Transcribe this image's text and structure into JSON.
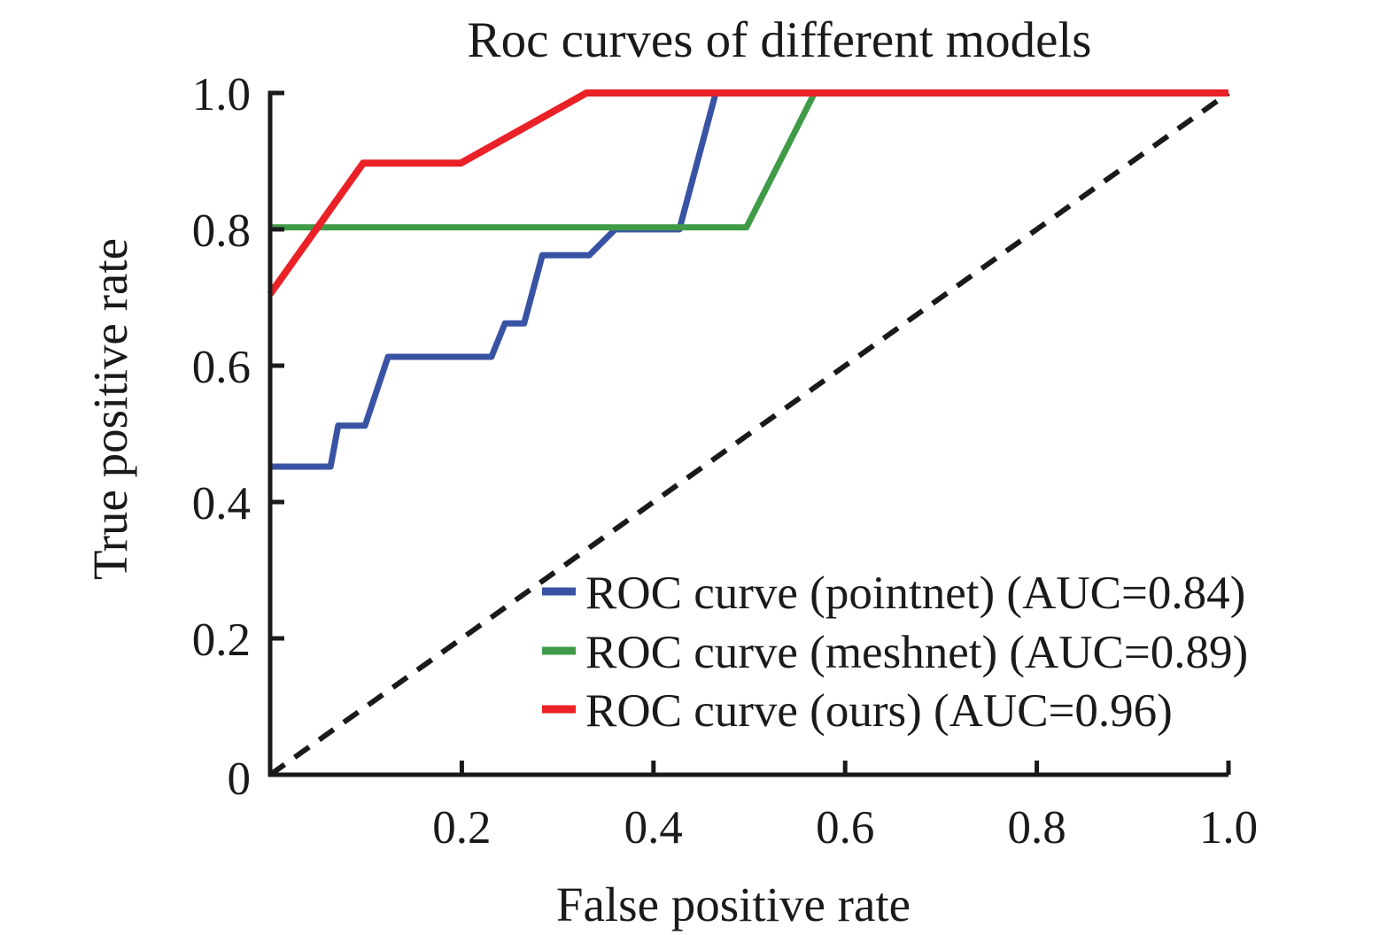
{
  "title": "Roc curves of different models",
  "axes": {
    "xlabel": "False positive rate",
    "ylabel": "True positive rate",
    "xlim": [
      0,
      1
    ],
    "ylim": [
      0,
      1
    ],
    "x_ticks": [
      0.2,
      0.4,
      0.6,
      0.8,
      1.0
    ],
    "x_tick_labels": [
      "0.2",
      "0.4",
      "0.6",
      "0.8",
      "1.0"
    ],
    "y_ticks": [
      0.2,
      0.4,
      0.6,
      0.8,
      1.0
    ],
    "y_tick_labels": [
      "0.2",
      "0.4",
      "0.6",
      "0.8",
      "1.0"
    ],
    "y_origin_label": "0"
  },
  "colors": {
    "pointnet": "#3953a4",
    "meshnet": "#3f9b47",
    "ours": "#ea2127",
    "chance": "#1a1a1a",
    "axis": "#1a1a1a"
  },
  "chart_data": {
    "type": "line",
    "title": "Roc curves of different models",
    "xlabel": "False positive rate",
    "ylabel": "True positive rate",
    "xlim": [
      0,
      1
    ],
    "ylim": [
      0,
      1
    ],
    "grid": false,
    "legend_position": "lower-right-inside",
    "series": [
      {
        "id": "pointnet",
        "name": "ROC curve (pointnet) (AUC=0.84)",
        "auc": 0.84,
        "color": "#3953a4",
        "style": "solid",
        "x": [
          0,
          0.063,
          0.071,
          0.099,
          0.123,
          0.231,
          0.245,
          0.265,
          0.284,
          0.333,
          0.36,
          0.427,
          0.465,
          1.0
        ],
        "y": [
          0.452,
          0.452,
          0.512,
          0.512,
          0.613,
          0.613,
          0.662,
          0.662,
          0.762,
          0.762,
          0.8,
          0.8,
          1.0,
          1.0
        ]
      },
      {
        "id": "meshnet",
        "name": "ROC curve (meshnet) (AUC=0.89)",
        "auc": 0.89,
        "color": "#3f9b47",
        "style": "solid",
        "x": [
          0,
          0.497,
          0.568,
          1.0
        ],
        "y": [
          0.803,
          0.803,
          1.0,
          1.0
        ]
      },
      {
        "id": "ours",
        "name": "ROC curve (ours) (AUC=0.96)",
        "auc": 0.96,
        "color": "#ea2127",
        "style": "solid",
        "x": [
          0,
          0.097,
          0.199,
          0.33,
          1.0
        ],
        "y": [
          0.705,
          0.897,
          0.897,
          1.0,
          1.0
        ]
      },
      {
        "id": "chance",
        "name": "chance-diagonal",
        "color": "#1a1a1a",
        "style": "dashed",
        "x": [
          0,
          1.0
        ],
        "y": [
          0,
          1.0
        ]
      }
    ]
  }
}
